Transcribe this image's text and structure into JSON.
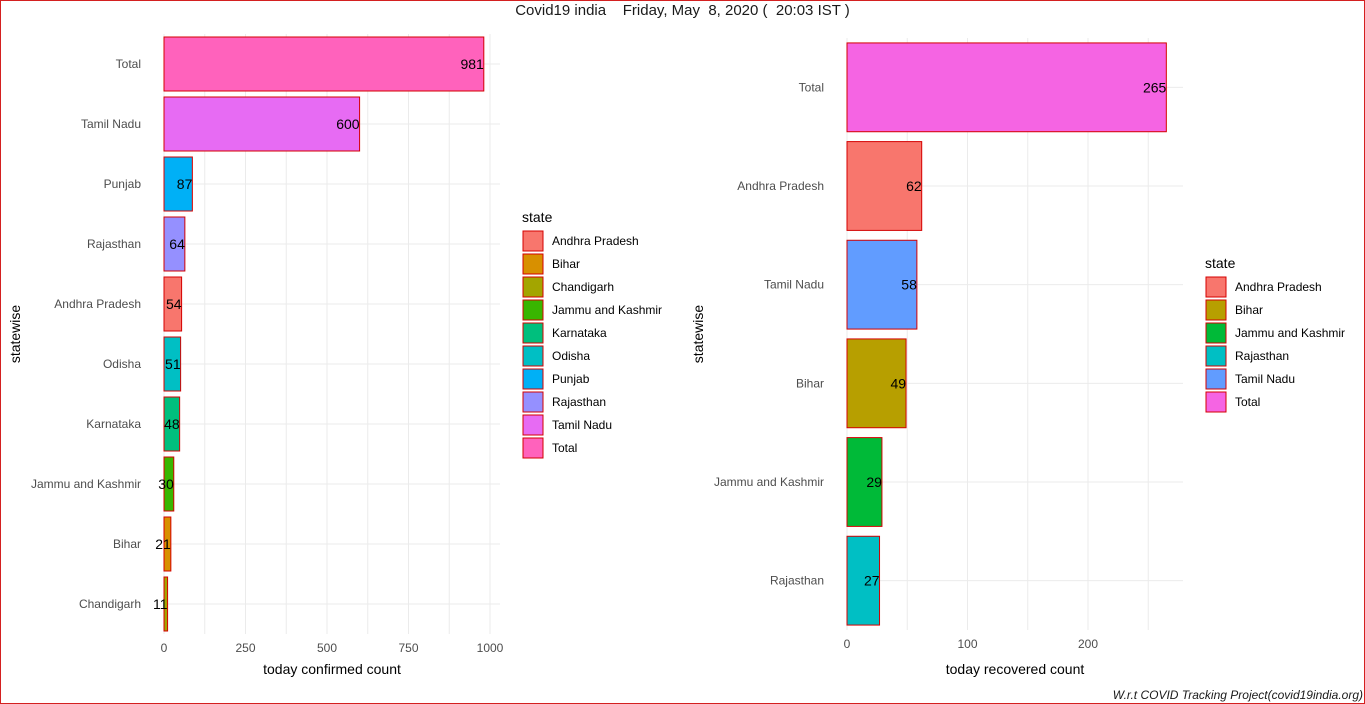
{
  "page": {
    "title": "Covid19 india    Friday, May  8, 2020 (  20:03 IST )",
    "caption": "W.r.t COVID Tracking Project(covid19india.org)"
  },
  "colors": {
    "Andhra Pradesh": "#F8766D",
    "Bihar": "#D89000",
    "Chandigarh": "#A3A500",
    "Jammu and Kashmir": "#39B600",
    "Karnataka": "#00BF7D",
    "Odisha": "#00BFC4",
    "Punjab": "#00B0F6",
    "Rajasthan": "#9590FF",
    "Tamil Nadu": "#E76BF3",
    "Total": "#FF62BC",
    "bar_outline": "#d40000",
    "grid": "#ebebeb"
  },
  "chart_data": [
    {
      "type": "bar",
      "orientation": "horizontal",
      "xlabel": "today confirmed count",
      "ylabel": "statewise",
      "xlim": [
        0,
        1030
      ],
      "x_ticks": [
        0,
        250,
        500,
        750,
        1000
      ],
      "grid": true,
      "categories": [
        "Total",
        "Tamil Nadu",
        "Punjab",
        "Rajasthan",
        "Andhra Pradesh",
        "Odisha",
        "Karnataka",
        "Jammu and Kashmir",
        "Bihar",
        "Chandigarh"
      ],
      "values": [
        981,
        600,
        87,
        64,
        54,
        51,
        48,
        30,
        21,
        11
      ],
      "legend": {
        "title": "state",
        "position": "right",
        "entries": [
          "Andhra Pradesh",
          "Bihar",
          "Chandigarh",
          "Jammu and Kashmir",
          "Karnataka",
          "Odisha",
          "Punjab",
          "Rajasthan",
          "Tamil Nadu",
          "Total"
        ],
        "colors": [
          "#F8766D",
          "#D89000",
          "#A3A500",
          "#39B600",
          "#00BF7D",
          "#00BFC4",
          "#00B0F6",
          "#9590FF",
          "#E76BF3",
          "#FF62BC"
        ]
      },
      "bar_colors": [
        "#FF62BC",
        "#E76BF3",
        "#00B0F6",
        "#9590FF",
        "#F8766D",
        "#00BFC4",
        "#00BF7D",
        "#39B600",
        "#D89000",
        "#A3A500"
      ]
    },
    {
      "type": "bar",
      "orientation": "horizontal",
      "xlabel": "today recovered count",
      "ylabel": "statewise",
      "xlim": [
        0,
        278
      ],
      "x_ticks": [
        0,
        100,
        200
      ],
      "grid": true,
      "categories": [
        "Total",
        "Andhra Pradesh",
        "Tamil Nadu",
        "Bihar",
        "Jammu and Kashmir",
        "Rajasthan"
      ],
      "values": [
        265,
        62,
        58,
        49,
        29,
        27
      ],
      "legend": {
        "title": "state",
        "position": "right",
        "entries": [
          "Andhra Pradesh",
          "Bihar",
          "Jammu and Kashmir",
          "Rajasthan",
          "Tamil Nadu",
          "Total"
        ],
        "colors": [
          "#F8766D",
          "#B79F00",
          "#00BA38",
          "#00BFC4",
          "#619CFF",
          "#F564E3"
        ]
      },
      "bar_colors": [
        "#F564E3",
        "#F8766D",
        "#619CFF",
        "#B79F00",
        "#00BA38",
        "#00BFC4"
      ]
    }
  ]
}
